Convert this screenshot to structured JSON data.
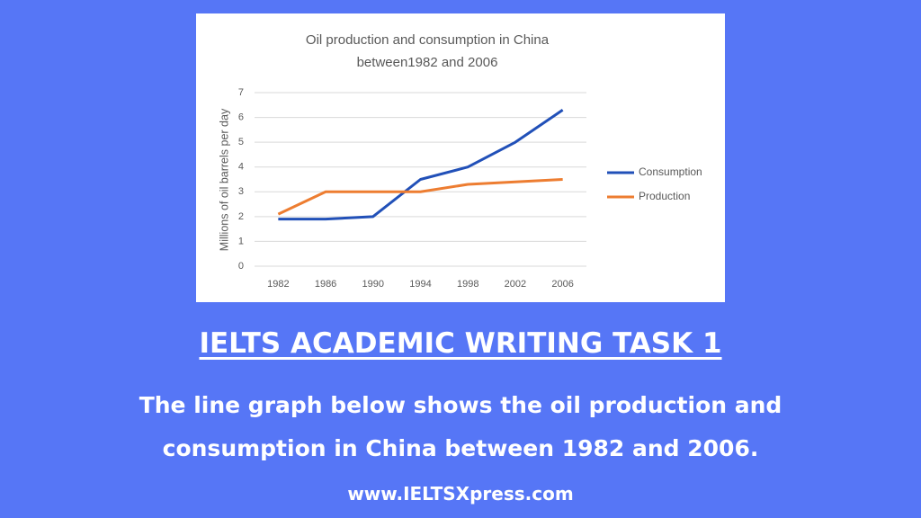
{
  "chart_data": {
    "type": "line",
    "title": [
      "Oil production and consumption in China",
      "between1982 and 2006"
    ],
    "y_label": "Millions of oil barrels per day",
    "categories": [
      "1982",
      "1986",
      "1990",
      "1994",
      "1998",
      "2002",
      "2006"
    ],
    "series": [
      {
        "name": "Consumption",
        "color": "#2150b8",
        "values": [
          1.9,
          1.9,
          2.0,
          3.5,
          4.0,
          5.0,
          6.3
        ]
      },
      {
        "name": "Production",
        "color": "#ed7d31",
        "values": [
          2.1,
          3.0,
          3.0,
          3.0,
          3.3,
          3.4,
          3.5
        ]
      }
    ],
    "ylim": [
      0,
      7
    ],
    "yticks": [
      0,
      1,
      2,
      3,
      4,
      5,
      6,
      7
    ],
    "grid": true,
    "legend": "right"
  },
  "heading": "IELTS ACADEMIC WRITING TASK 1",
  "description": [
    "The line graph below shows the oil production and",
    "consumption in China between 1982 and 2006."
  ],
  "website": "www.IELTSXpress.com"
}
